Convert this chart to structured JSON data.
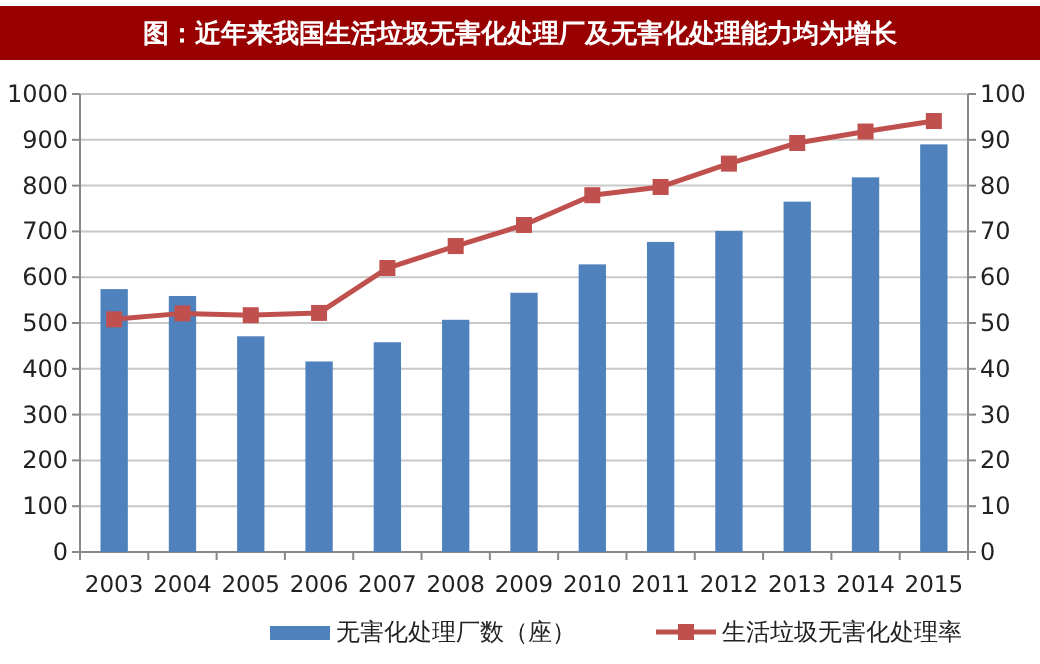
{
  "chart_data": {
    "type": "bar",
    "title": "图：近年来我国生活垃圾无害化处理厂及无害化处理能力均为增长",
    "categories": [
      "2003",
      "2004",
      "2005",
      "2006",
      "2007",
      "2008",
      "2009",
      "2010",
      "2011",
      "2012",
      "2013",
      "2014",
      "2015"
    ],
    "series": [
      {
        "name": "无害化处理厂数（座）",
        "color": "#4f81bd",
        "values": [
          574,
          559,
          471,
          416,
          458,
          507,
          566,
          628,
          677,
          701,
          765,
          818,
          890
        ]
      },
      {
        "name": "生活垃圾无害化处理率",
        "color": "#c0504d",
        "type": "line",
        "axis": "y2",
        "values": [
          50.8,
          52.1,
          51.7,
          52.2,
          62.0,
          66.8,
          71.4,
          77.9,
          79.7,
          84.8,
          89.3,
          91.8,
          94.1
        ]
      }
    ],
    "ylim": [
      0,
      1000
    ],
    "yticks": [
      0,
      100,
      200,
      300,
      400,
      500,
      600,
      700,
      800,
      900,
      1000
    ],
    "y2lim": [
      0,
      100
    ],
    "y2ticks": [
      0,
      10,
      20,
      30,
      40,
      50,
      60,
      70,
      80,
      90,
      100
    ],
    "grid": "y",
    "legend": "bottom",
    "marker": "square",
    "line_style": "solid"
  }
}
